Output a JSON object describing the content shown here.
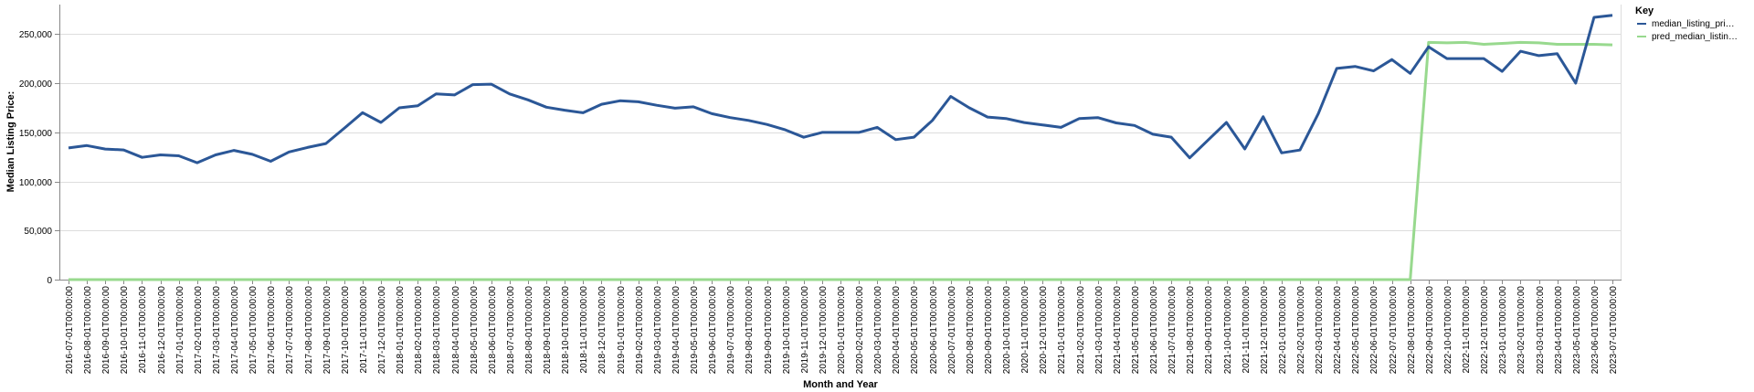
{
  "colors": {
    "series_actual": "#2b5797",
    "series_pred": "#98d98e",
    "grid": "#dddddd",
    "axis": "#888888"
  },
  "chart_data": {
    "type": "line",
    "xlabel": "Month and Year",
    "ylabel": "Median Listing Price:",
    "ylim": [
      0,
      280000
    ],
    "yticks": [
      0,
      50000,
      100000,
      150000,
      200000,
      250000
    ],
    "ytick_labels": [
      "0",
      "50,000",
      "100,000",
      "150,000",
      "200,000",
      "250,000"
    ],
    "grid": true,
    "legend": {
      "title": "Key",
      "placement": "top-right"
    },
    "x": [
      "2016-07-01T00:00:00",
      "2016-08-01T00:00:00",
      "2016-09-01T00:00:00",
      "2016-10-01T00:00:00",
      "2016-11-01T00:00:00",
      "2016-12-01T00:00:00",
      "2017-01-01T00:00:00",
      "2017-02-01T00:00:00",
      "2017-03-01T00:00:00",
      "2017-04-01T00:00:00",
      "2017-05-01T00:00:00",
      "2017-06-01T00:00:00",
      "2017-07-01T00:00:00",
      "2017-08-01T00:00:00",
      "2017-09-01T00:00:00",
      "2017-10-01T00:00:00",
      "2017-11-01T00:00:00",
      "2017-12-01T00:00:00",
      "2018-01-01T00:00:00",
      "2018-02-01T00:00:00",
      "2018-03-01T00:00:00",
      "2018-04-01T00:00:00",
      "2018-05-01T00:00:00",
      "2018-06-01T00:00:00",
      "2018-07-01T00:00:00",
      "2018-08-01T00:00:00",
      "2018-09-01T00:00:00",
      "2018-10-01T00:00:00",
      "2018-11-01T00:00:00",
      "2018-12-01T00:00:00",
      "2019-01-01T00:00:00",
      "2019-02-01T00:00:00",
      "2019-03-01T00:00:00",
      "2019-04-01T00:00:00",
      "2019-05-01T00:00:00",
      "2019-06-01T00:00:00",
      "2019-07-01T00:00:00",
      "2019-08-01T00:00:00",
      "2019-09-01T00:00:00",
      "2019-10-01T00:00:00",
      "2019-11-01T00:00:00",
      "2019-12-01T00:00:00",
      "2020-01-01T00:00:00",
      "2020-02-01T00:00:00",
      "2020-03-01T00:00:00",
      "2020-04-01T00:00:00",
      "2020-05-01T00:00:00",
      "2020-06-01T00:00:00",
      "2020-07-01T00:00:00",
      "2020-08-01T00:00:00",
      "2020-09-01T00:00:00",
      "2020-10-01T00:00:00",
      "2020-11-01T00:00:00",
      "2020-12-01T00:00:00",
      "2021-01-01T00:00:00",
      "2021-02-01T00:00:00",
      "2021-03-01T00:00:00",
      "2021-04-01T00:00:00",
      "2021-05-01T00:00:00",
      "2021-06-01T00:00:00",
      "2021-07-01T00:00:00",
      "2021-08-01T00:00:00",
      "2021-09-01T00:00:00",
      "2021-10-01T00:00:00",
      "2021-11-01T00:00:00",
      "2021-12-01T00:00:00",
      "2022-01-01T00:00:00",
      "2022-02-01T00:00:00",
      "2022-03-01T00:00:00",
      "2022-04-01T00:00:00",
      "2022-05-01T00:00:00",
      "2022-06-01T00:00:00",
      "2022-07-01T00:00:00",
      "2022-08-01T00:00:00",
      "2022-09-01T00:00:00",
      "2022-10-01T00:00:00",
      "2022-11-01T00:00:00",
      "2022-12-01T00:00:00",
      "2023-01-01T00:00:00",
      "2023-02-01T00:00:00",
      "2023-03-01T00:00:00",
      "2023-04-01T00:00:00",
      "2023-05-01T00:00:00",
      "2023-06-01T00:00:00",
      "2023-07-01T00:00:00"
    ],
    "series": [
      {
        "name": "median_listing_pri…",
        "values": [
          134000,
          136500,
          132900,
          132000,
          124500,
          127000,
          126000,
          119000,
          127000,
          131500,
          127500,
          120500,
          130000,
          134500,
          138500,
          154000,
          170000,
          160000,
          174900,
          177000,
          189000,
          188000,
          198500,
          199000,
          189000,
          183000,
          175500,
          172500,
          169900,
          178500,
          182000,
          181000,
          177500,
          174500,
          175900,
          168900,
          164900,
          162000,
          158000,
          152500,
          144900,
          149900,
          149900,
          149900,
          155000,
          142500,
          145000,
          162000,
          186500,
          175000,
          165500,
          164000,
          159900,
          157500,
          155000,
          164000,
          164900,
          159500,
          156900,
          148000,
          145000,
          124000,
          142000,
          160000,
          133000,
          165900,
          129000,
          131900,
          169000,
          215000,
          217000,
          212500,
          224000,
          210000,
          237000,
          225000,
          225000,
          225000,
          212000,
          232500,
          228000,
          230000,
          200000,
          267000,
          269000
        ]
      },
      {
        "name": "pred_median_listin…",
        "values": [
          0,
          0,
          0,
          0,
          0,
          0,
          0,
          0,
          0,
          0,
          0,
          0,
          0,
          0,
          0,
          0,
          0,
          0,
          0,
          0,
          0,
          0,
          0,
          0,
          0,
          0,
          0,
          0,
          0,
          0,
          0,
          0,
          0,
          0,
          0,
          0,
          0,
          0,
          0,
          0,
          0,
          0,
          0,
          0,
          0,
          0,
          0,
          0,
          0,
          0,
          0,
          0,
          0,
          0,
          0,
          0,
          0,
          0,
          0,
          0,
          0,
          0,
          0,
          0,
          0,
          0,
          0,
          0,
          0,
          0,
          0,
          0,
          0,
          0,
          241500,
          241000,
          241500,
          239500,
          240500,
          241500,
          241000,
          239500,
          239500,
          239500,
          239000
        ]
      }
    ]
  }
}
